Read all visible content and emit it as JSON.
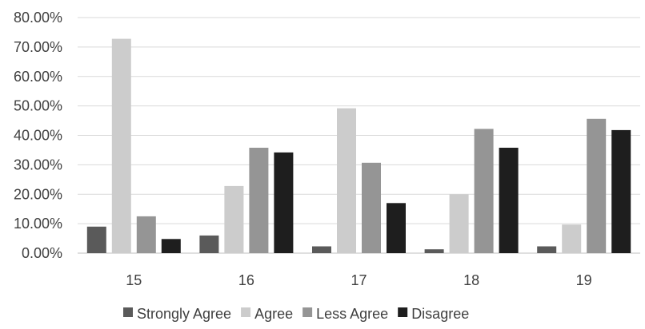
{
  "chart_data": {
    "type": "bar",
    "categories": [
      "15",
      "16",
      "17",
      "18",
      "19"
    ],
    "series": [
      {
        "name": "Strongly Agree",
        "color": "#5a5a5a",
        "values": [
          9.0,
          6.0,
          2.3,
          1.3,
          2.3
        ]
      },
      {
        "name": "Agree",
        "color": "#cccccc",
        "values": [
          72.8,
          22.8,
          49.2,
          20.0,
          9.7
        ]
      },
      {
        "name": "Less Agree",
        "color": "#959595",
        "values": [
          12.5,
          35.8,
          30.7,
          42.2,
          45.6
        ]
      },
      {
        "name": "Disagree",
        "color": "#1e1e1e",
        "values": [
          4.8,
          34.2,
          17.0,
          35.8,
          41.8
        ]
      }
    ],
    "y_ticks": [
      "0.00%",
      "10.00%",
      "20.00%",
      "30.00%",
      "40.00%",
      "50.00%",
      "60.00%",
      "70.00%",
      "80.00%"
    ],
    "ylim": [
      0,
      80
    ],
    "grid": true,
    "legend_position": "bottom"
  }
}
